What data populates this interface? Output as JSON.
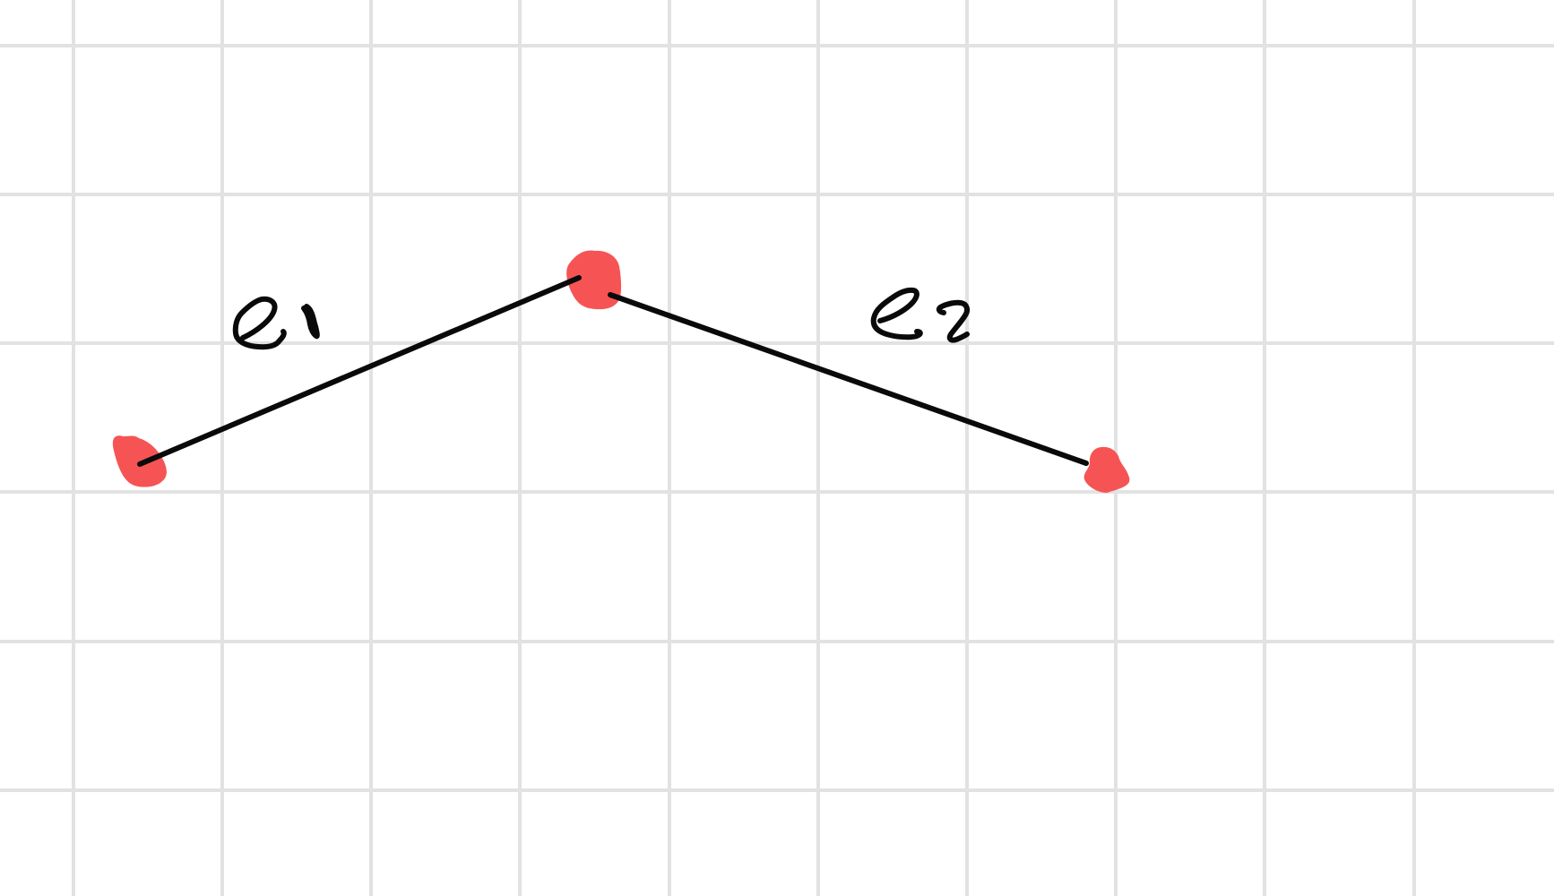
{
  "diagram": {
    "background": "#ffffff",
    "grid_color": "#e2e2e2",
    "node_color": "#f65454",
    "edge_color": "#0a0a0a",
    "nodes": [
      {
        "id": "node-left"
      },
      {
        "id": "node-middle"
      },
      {
        "id": "node-right"
      }
    ],
    "edges": [
      {
        "id": "edge-e1",
        "from": "node-left",
        "to": "node-middle",
        "label": "e1"
      },
      {
        "id": "edge-e2",
        "from": "node-middle",
        "to": "node-right",
        "label": "e2"
      }
    ]
  }
}
